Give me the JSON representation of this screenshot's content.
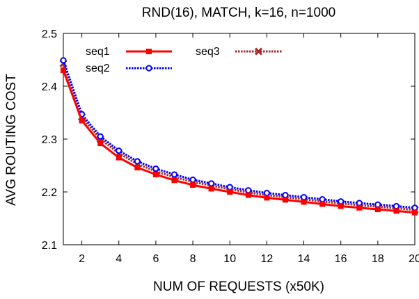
{
  "chart_data": {
    "type": "line",
    "title": "RND(16), MATCH, k=16, n=1000",
    "xlabel": "NUM OF REQUESTS (x50K)",
    "ylabel": "AVG ROUTING COST",
    "xlim": [
      1,
      20
    ],
    "ylim": [
      2.1,
      2.5
    ],
    "xticks": [
      2,
      4,
      6,
      8,
      10,
      12,
      14,
      16,
      18,
      20
    ],
    "yticks": [
      2.1,
      2.2,
      2.3,
      2.4,
      2.5
    ],
    "ytick_labels": [
      "2.1",
      "2.2",
      "2.3",
      "2.4",
      "2.5"
    ],
    "grid": false,
    "legend_position": "top-left",
    "x": [
      1,
      2,
      3,
      4,
      5,
      6,
      7,
      8,
      9,
      10,
      11,
      12,
      13,
      14,
      15,
      16,
      17,
      18,
      19,
      20
    ],
    "series": [
      {
        "name": "seq1",
        "color": "#ff0000",
        "line_style": "solid",
        "marker": "square",
        "values": [
          2.43,
          2.335,
          2.292,
          2.265,
          2.246,
          2.233,
          2.222,
          2.213,
          2.206,
          2.2,
          2.194,
          2.189,
          2.185,
          2.181,
          2.177,
          2.173,
          2.17,
          2.167,
          2.164,
          2.161
        ]
      },
      {
        "name": "seq2",
        "color": "#0000ff",
        "line_style": "dotted",
        "marker": "circle",
        "values": [
          2.449,
          2.347,
          2.305,
          2.278,
          2.258,
          2.244,
          2.233,
          2.223,
          2.216,
          2.209,
          2.203,
          2.198,
          2.194,
          2.19,
          2.186,
          2.182,
          2.179,
          2.176,
          2.173,
          2.17
        ]
      },
      {
        "name": "seq3",
        "color": "#a52a2a",
        "line_style": "dotted",
        "marker": "cross",
        "values": [
          2.443,
          2.342,
          2.3,
          2.273,
          2.253,
          2.239,
          2.228,
          2.219,
          2.212,
          2.205,
          2.199,
          2.194,
          2.19,
          2.186,
          2.182,
          2.178,
          2.175,
          2.172,
          2.169,
          2.166
        ]
      }
    ]
  }
}
